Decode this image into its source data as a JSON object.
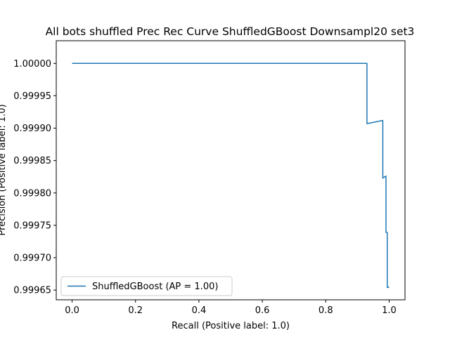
{
  "chart_data": {
    "type": "line",
    "title": "All bots shuffled Prec Rec Curve ShuffledGBoost Downsampl20 set3",
    "xlabel": "Recall (Positive label: 1.0)",
    "ylabel": "Precision (Positive label: 1.0)",
    "xlim": [
      -0.05,
      1.05
    ],
    "ylim": [
      0.999635,
      1.000035
    ],
    "xticks": [
      0.0,
      0.2,
      0.4,
      0.6,
      0.8,
      1.0
    ],
    "xtick_labels": [
      "0.0",
      "0.2",
      "0.4",
      "0.6",
      "0.8",
      "1.0"
    ],
    "yticks": [
      0.99965,
      0.9997,
      0.99975,
      0.9998,
      0.99985,
      0.9999,
      0.99995,
      1.0
    ],
    "ytick_labels": [
      "0.99965",
      "0.99970",
      "0.99975",
      "0.99980",
      "0.99985",
      "0.99990",
      "0.99995",
      "1.00000"
    ],
    "grid": false,
    "legend_position": "lower-left",
    "series": [
      {
        "name": "ShuffledGBoost (AP = 1.00)",
        "color": "#1f77b4",
        "x": [
          0.0,
          0.93,
          0.93,
          0.98,
          0.98,
          0.99,
          0.99,
          0.994,
          0.994,
          0.996,
          0.996,
          1.0
        ],
        "y": [
          1.0,
          1.0,
          0.999907,
          0.999912,
          0.999823,
          0.999826,
          0.999739,
          0.999739,
          0.999654,
          0.999654,
          0.999654,
          0.999655
        ]
      }
    ]
  }
}
